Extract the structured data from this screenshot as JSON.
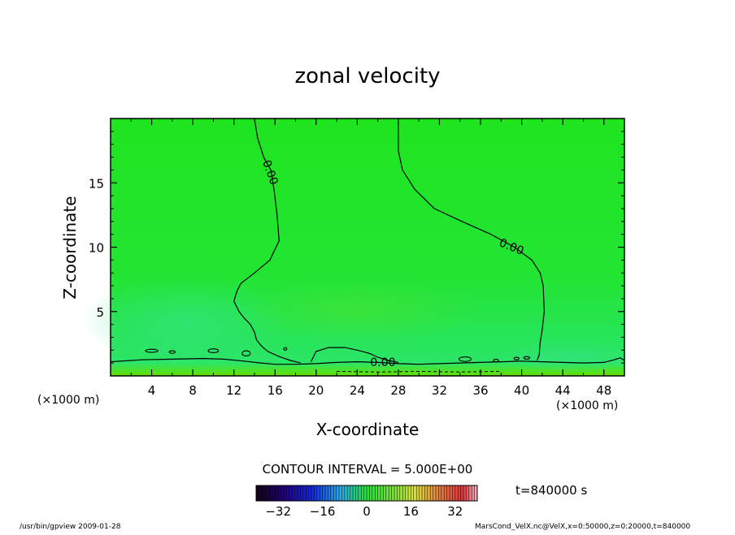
{
  "chart_data": {
    "type": "heatmap",
    "title": "zonal velocity",
    "xlabel": "X-coordinate",
    "ylabel": "Z-coordinate",
    "x_unit": "(×1000 m)",
    "y_unit": "(×1000 m)",
    "xlim": [
      0,
      50
    ],
    "ylim": [
      0,
      20
    ],
    "x_ticks": [
      4,
      8,
      12,
      16,
      20,
      24,
      28,
      32,
      36,
      40,
      44,
      48
    ],
    "y_ticks": [
      5,
      10,
      15
    ],
    "contour_interval": "CONTOUR INTERVAL = 5.000E+00",
    "contour_labels": [
      {
        "text": "0.00",
        "x": 15.5,
        "z": 15.8
      },
      {
        "text": "0.00",
        "x": 39,
        "z": 10
      },
      {
        "text": "0.00",
        "x": 26.5,
        "z": 1.0
      }
    ],
    "colorbar": {
      "range": [
        -40,
        40
      ],
      "ticks": [
        -32,
        -16,
        0,
        16,
        32
      ]
    },
    "time": "t=840000 s",
    "footer_left": "/usr/bin/gpview   2009-01-28",
    "footer_right": "MarsCond_VelX.nc@VelX,x=0:50000,z=0:20000,t=840000"
  }
}
